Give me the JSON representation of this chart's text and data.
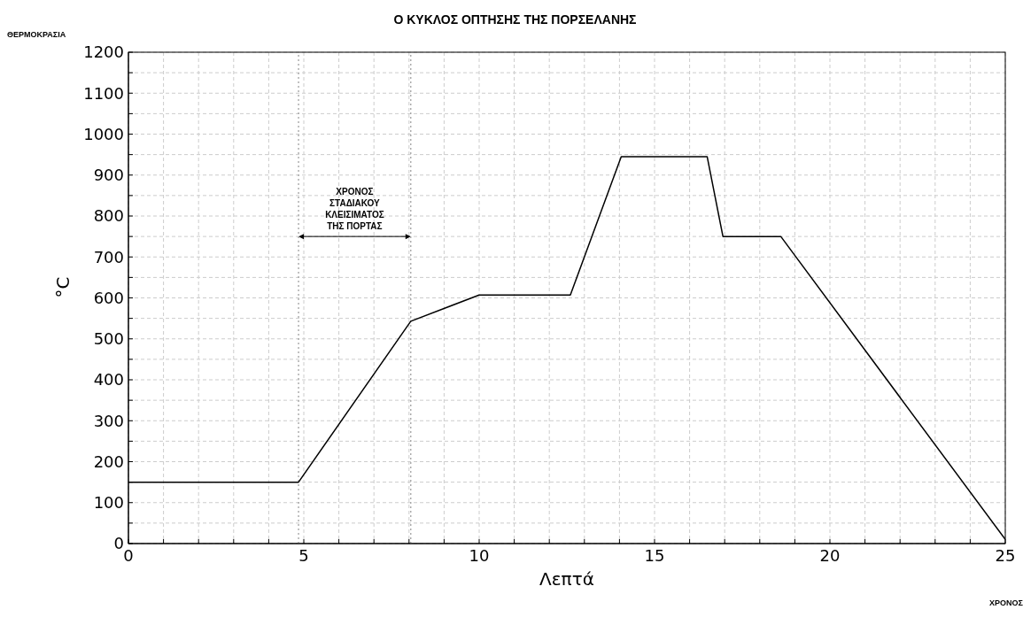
{
  "chart_data": {
    "type": "line",
    "title": "Ο ΚΥΚΛΟΣ ΟΠΤΗΣΗΣ ΤΗΣ ΠΟΡΣΕΛΑΝΗΣ",
    "xlabel": "Λεπτά",
    "ylabel": "°C",
    "x": [
      0,
      4.85,
      8.05,
      10,
      12.6,
      14.05,
      16.5,
      16.95,
      18.6,
      25
    ],
    "series": [
      {
        "color": "#000000",
        "values": [
          150,
          150,
          543,
          607,
          607,
          945,
          945,
          750,
          750,
          10
        ]
      }
    ],
    "xlim": [
      0,
      25
    ],
    "xticks": [
      0,
      {
        "value": 1,
        "label": null
      },
      {
        "value": 2,
        "label": null
      },
      {
        "value": 3,
        "label": null
      },
      {
        "value": 4,
        "label": null
      },
      5,
      {
        "value": 6,
        "label": null
      },
      {
        "value": 7,
        "label": null
      },
      {
        "value": 8,
        "label": null
      },
      {
        "value": 9,
        "label": null
      },
      10,
      {
        "value": 11,
        "label": null
      },
      {
        "value": 12,
        "label": null
      },
      {
        "value": 13,
        "label": null
      },
      {
        "value": 14,
        "label": null
      },
      15,
      {
        "value": 16,
        "label": null
      },
      {
        "value": 17,
        "label": null
      },
      {
        "value": 18,
        "label": null
      },
      {
        "value": 19,
        "label": null
      },
      20,
      {
        "value": 21,
        "label": null
      },
      {
        "value": 22,
        "label": null
      },
      {
        "value": 23,
        "label": null
      },
      {
        "value": 24,
        "label": null
      },
      25
    ],
    "ylim": [
      0,
      1200
    ],
    "yticks": [
      0,
      {
        "value": 50,
        "label": null
      },
      100,
      {
        "value": 150,
        "label": null
      },
      200,
      {
        "value": 250,
        "label": null
      },
      300,
      {
        "value": 350,
        "label": null
      },
      400,
      {
        "value": 450,
        "label": null
      },
      500,
      {
        "value": 550,
        "label": null
      },
      600,
      {
        "value": 650,
        "label": null
      },
      700,
      {
        "value": 750,
        "label": null
      },
      800,
      {
        "value": 850,
        "label": null
      },
      900,
      {
        "value": 950,
        "label": null
      },
      1000,
      {
        "value": 1050,
        "label": null
      },
      1100,
      {
        "value": 1150,
        "label": null
      },
      1200
    ],
    "grid": true,
    "marker": "none",
    "line_style": "solid",
    "legend": false,
    "ref_lines": [
      {
        "axis": "x",
        "value": 4.85,
        "color": "#999999",
        "line_style": "dotted"
      },
      {
        "axis": "x",
        "value": 8.05,
        "color": "#999999",
        "line_style": "dotted"
      }
    ],
    "annotations": [
      "ΘΕΡΜΟΚΡΑΣΙΑ",
      "ΧΡΟΝΟΣ",
      "ΧΡΟΝΟΣ\nΣΤΑΔΙΑΚΟΥ\nΚΛΕΙΣΙΜΑΤΟΣ\nΤΗΣ ΠΟΡΤΑΣ"
    ]
  }
}
